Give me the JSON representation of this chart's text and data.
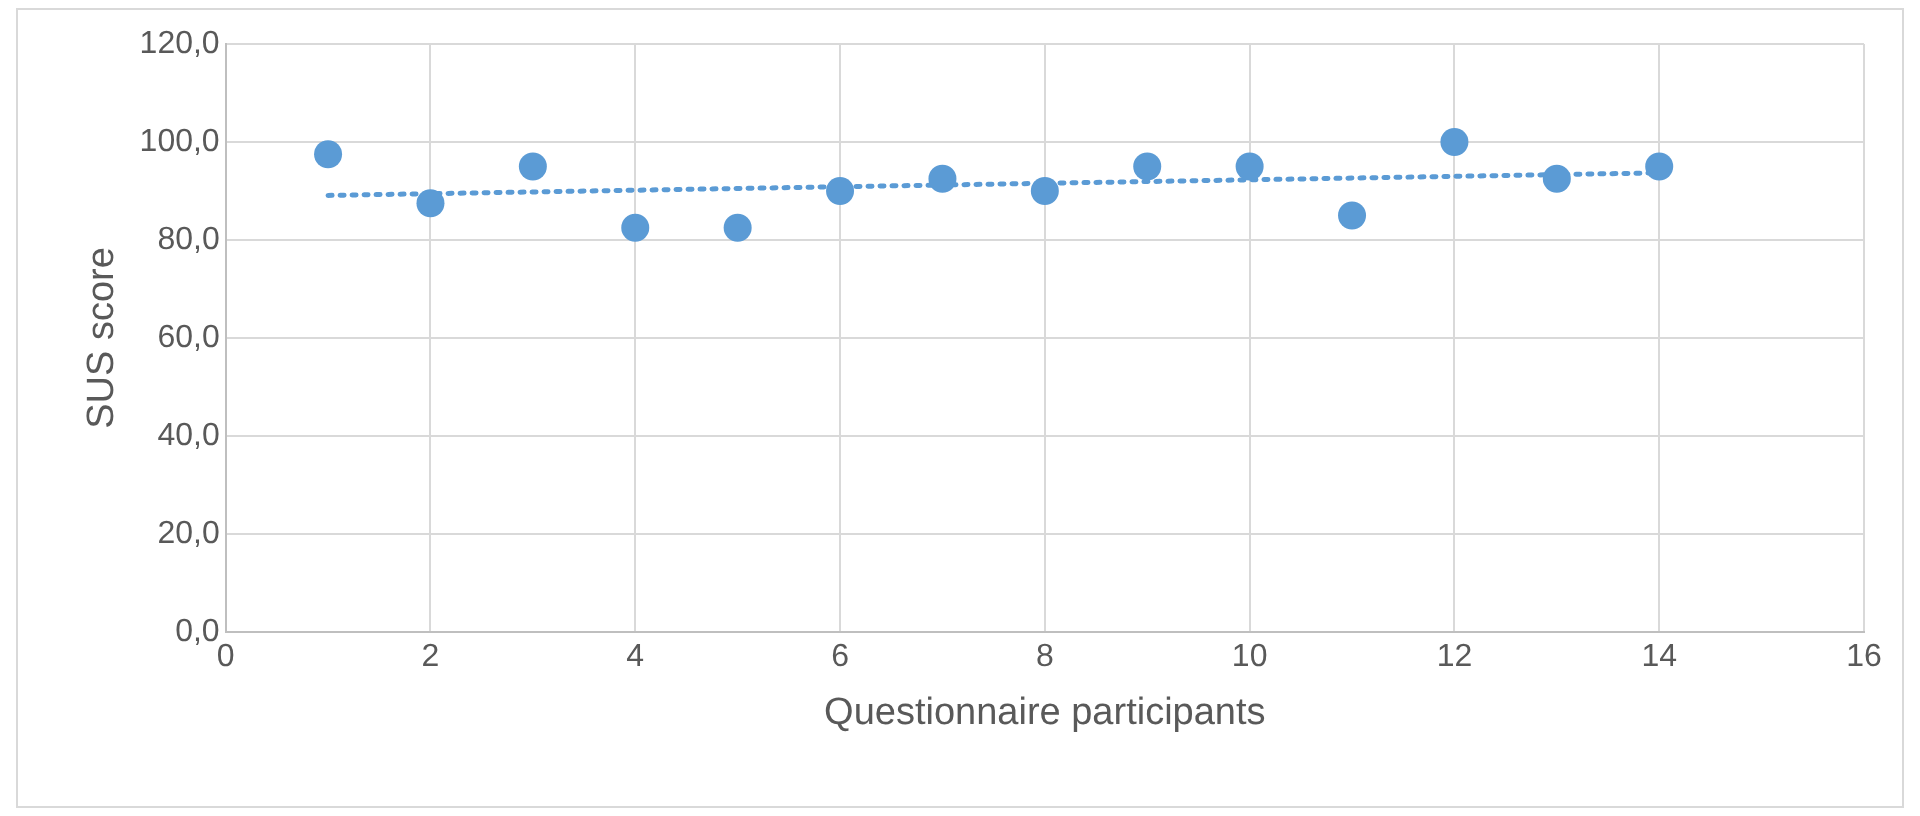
{
  "chart_data": {
    "type": "scatter",
    "xlabel": "Questionnaire participants",
    "ylabel": "SUS score",
    "x": [
      1,
      2,
      3,
      4,
      5,
      6,
      7,
      8,
      9,
      10,
      11,
      12,
      13,
      14
    ],
    "series": [
      {
        "type": "scatter",
        "color": "#5b9bd5",
        "marker": "circle",
        "values": [
          97.5,
          87.5,
          95,
          82.5,
          82.5,
          90,
          92.5,
          90,
          95,
          95,
          85,
          100,
          92.5,
          95
        ]
      },
      {
        "type": "line",
        "color": "#5b9bd5",
        "line_style": "dotted",
        "marker": "none",
        "x": [
          1,
          14
        ],
        "values": [
          89.1,
          93.7
        ]
      }
    ],
    "xlim": [
      0,
      16
    ],
    "xticks": [
      0,
      2,
      4,
      6,
      8,
      10,
      12,
      14,
      16
    ],
    "ylim": [
      0,
      120
    ],
    "yticks": [
      {
        "value": 0,
        "label": "0,0"
      },
      {
        "value": 20,
        "label": "20,0"
      },
      {
        "value": 40,
        "label": "40,0"
      },
      {
        "value": 60,
        "label": "60,0"
      },
      {
        "value": 80,
        "label": "80,0"
      },
      {
        "value": 100,
        "label": "100,0"
      },
      {
        "value": 120,
        "label": "120,0"
      }
    ],
    "grid": true,
    "legend": false
  }
}
